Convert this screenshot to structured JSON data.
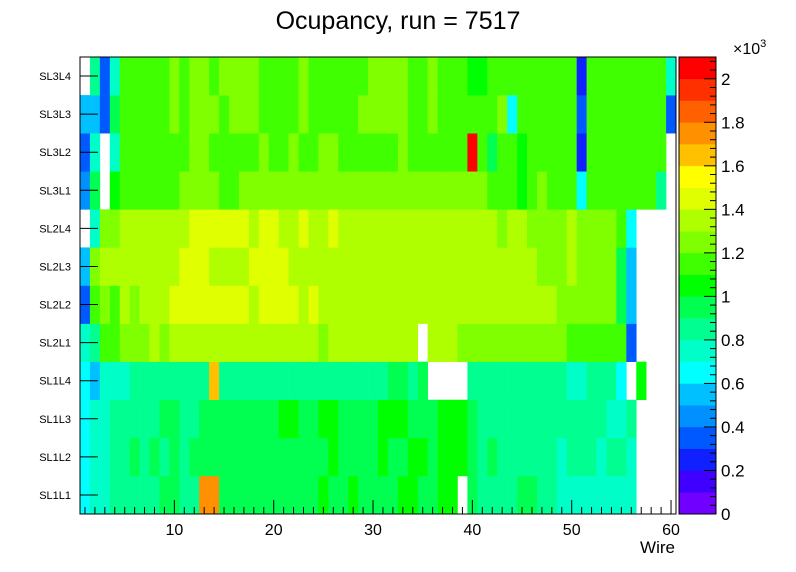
{
  "chart_data": {
    "type": "heatmap",
    "title": "Ocupancy, run = 7517",
    "xlabel": "Wire",
    "ylabel": "",
    "xlim": [
      0.5,
      60.5
    ],
    "x_ticks": [
      "10",
      "20",
      "30",
      "40",
      "50",
      "60"
    ],
    "x_tick_values": [
      10,
      20,
      30,
      40,
      50,
      60
    ],
    "y_categories": [
      "SL1L1",
      "SL1L2",
      "SL1L3",
      "SL1L4",
      "SL2L1",
      "SL2L2",
      "SL2L3",
      "SL2L4",
      "SL3L1",
      "SL3L2",
      "SL3L3",
      "SL3L4"
    ],
    "zlim": [
      0,
      2100
    ],
    "z_exponent_label": "×10",
    "z_exponent_power": "3",
    "z_ticks": [
      "0",
      "0.2",
      "0.4",
      "0.6",
      "0.8",
      "1",
      "1.2",
      "1.4",
      "1.6",
      "1.8",
      "2"
    ],
    "z_tick_values": [
      0,
      200,
      400,
      600,
      800,
      1000,
      1200,
      1400,
      1600,
      1800,
      2000
    ],
    "palette": [
      "#7000ff",
      "#4000ff",
      "#1020ff",
      "#0058ff",
      "#0090ff",
      "#00c0ff",
      "#00ffff",
      "#00ffc8",
      "#00ff90",
      "#00ff50",
      "#00ff00",
      "#40ff00",
      "#80ff00",
      "#b0ff00",
      "#e0ff00",
      "#ffff00",
      "#ffc000",
      "#ff9000",
      "#ff6000",
      "#ff3000",
      "#ff0000"
    ],
    "rows": [
      [
        600,
        750,
        750,
        850,
        850,
        850,
        850,
        850,
        900,
        900,
        850,
        850,
        1700,
        1700,
        900,
        900,
        900,
        900,
        950,
        950,
        950,
        950,
        950,
        950,
        1000,
        950,
        950,
        1000,
        950,
        950,
        950,
        950,
        1000,
        1000,
        950,
        950,
        1000,
        1000,
        0,
        900,
        800,
        800,
        850,
        850,
        900,
        900,
        800,
        800,
        750,
        750,
        750,
        750,
        750,
        750,
        750,
        750,
        0,
        0,
        0,
        0
      ],
      [
        600,
        700,
        700,
        850,
        800,
        900,
        800,
        900,
        850,
        900,
        850,
        900,
        900,
        900,
        950,
        900,
        950,
        900,
        950,
        950,
        950,
        950,
        950,
        950,
        950,
        1000,
        950,
        950,
        950,
        950,
        1000,
        950,
        950,
        1000,
        1000,
        950,
        1000,
        1000,
        1000,
        900,
        850,
        900,
        850,
        800,
        850,
        850,
        800,
        800,
        750,
        800,
        800,
        800,
        750,
        800,
        800,
        750,
        0,
        0,
        0,
        0
      ],
      [
        600,
        750,
        750,
        850,
        850,
        850,
        850,
        850,
        900,
        900,
        850,
        850,
        900,
        950,
        950,
        950,
        950,
        950,
        950,
        950,
        1000,
        1000,
        950,
        950,
        1000,
        1000,
        950,
        950,
        950,
        950,
        1000,
        1000,
        1000,
        950,
        950,
        950,
        1000,
        1000,
        1000,
        950,
        850,
        850,
        850,
        850,
        850,
        850,
        800,
        800,
        800,
        800,
        850,
        850,
        800,
        750,
        750,
        800,
        0,
        0,
        0,
        0
      ],
      [
        600,
        500,
        700,
        750,
        750,
        800,
        800,
        850,
        850,
        850,
        850,
        850,
        850,
        1600,
        850,
        850,
        850,
        850,
        800,
        850,
        850,
        850,
        850,
        800,
        850,
        850,
        850,
        850,
        850,
        850,
        850,
        900,
        900,
        850,
        900,
        0,
        0,
        0,
        0,
        850,
        850,
        850,
        850,
        850,
        850,
        850,
        850,
        850,
        850,
        750,
        750,
        850,
        850,
        850,
        650,
        0,
        1000,
        0,
        0,
        0
      ],
      [
        700,
        850,
        1150,
        1150,
        1200,
        1250,
        1250,
        1300,
        1250,
        1300,
        1300,
        1300,
        1300,
        1300,
        1350,
        1350,
        1350,
        1350,
        1300,
        1300,
        1350,
        1350,
        1300,
        1300,
        1250,
        1300,
        1350,
        1300,
        1300,
        1300,
        1300,
        1300,
        1300,
        1350,
        0,
        1300,
        1300,
        1300,
        1250,
        1200,
        1200,
        1200,
        1200,
        1250,
        1200,
        1200,
        1200,
        1200,
        1200,
        1150,
        1150,
        1150,
        1150,
        1150,
        1100,
        300,
        0,
        0,
        0,
        0
      ],
      [
        300,
        1150,
        1200,
        1150,
        1300,
        1200,
        1300,
        1350,
        1350,
        1400,
        1400,
        1400,
        1400,
        1400,
        1400,
        1400,
        1400,
        1350,
        1400,
        1400,
        1400,
        1400,
        1350,
        1400,
        1350,
        1350,
        1350,
        1350,
        1350,
        1350,
        1350,
        1350,
        1350,
        1350,
        1350,
        1350,
        1350,
        1350,
        1350,
        1350,
        1350,
        1300,
        1300,
        1300,
        1300,
        1350,
        1300,
        1300,
        1250,
        1250,
        1250,
        1250,
        1250,
        1250,
        950,
        500,
        0,
        0,
        0,
        0
      ],
      [
        500,
        1250,
        1300,
        1350,
        1300,
        1350,
        1300,
        1350,
        1350,
        1350,
        1400,
        1400,
        1400,
        1350,
        1350,
        1350,
        1350,
        1400,
        1450,
        1400,
        1400,
        1350,
        1350,
        1350,
        1350,
        1350,
        1300,
        1300,
        1350,
        1350,
        1350,
        1350,
        1300,
        1350,
        1300,
        1350,
        1300,
        1300,
        1350,
        1350,
        1300,
        1300,
        1300,
        1300,
        1300,
        1300,
        1250,
        1250,
        1250,
        1300,
        1250,
        1250,
        1250,
        1250,
        900,
        550,
        0,
        0,
        0,
        0
      ],
      [
        0,
        750,
        1250,
        1250,
        1300,
        1300,
        1300,
        1350,
        1350,
        1350,
        1350,
        1400,
        1400,
        1450,
        1400,
        1400,
        1400,
        1350,
        1400,
        1400,
        1350,
        1350,
        1400,
        1350,
        1350,
        1400,
        1350,
        1350,
        1300,
        1300,
        1350,
        1350,
        1350,
        1350,
        1300,
        1350,
        1300,
        1300,
        1300,
        1350,
        1300,
        1300,
        1250,
        1300,
        1300,
        1250,
        1250,
        1250,
        1250,
        1300,
        1250,
        1250,
        1250,
        1250,
        1100,
        600,
        0,
        0,
        0,
        0
      ],
      [
        400,
        900,
        0,
        1050,
        1100,
        1100,
        1100,
        1150,
        1150,
        1150,
        1200,
        1200,
        1200,
        1200,
        1150,
        1150,
        1200,
        1200,
        1250,
        1250,
        1200,
        1200,
        1200,
        1200,
        1200,
        1200,
        1200,
        1200,
        1200,
        1200,
        1200,
        1200,
        1200,
        1200,
        1200,
        1200,
        1200,
        1200,
        1200,
        1200,
        1200,
        1150,
        1150,
        1150,
        1050,
        1150,
        1200,
        1150,
        1150,
        1150,
        600,
        1150,
        1150,
        1150,
        1150,
        1100,
        1100,
        1100,
        800,
        0
      ],
      [
        350,
        700,
        0,
        700,
        1100,
        1100,
        1150,
        1150,
        1150,
        1150,
        1150,
        1200,
        1200,
        1150,
        1150,
        1150,
        1150,
        1150,
        1200,
        1150,
        1150,
        1200,
        1150,
        1150,
        1200,
        1200,
        1150,
        1150,
        1150,
        1150,
        1150,
        1150,
        1200,
        1150,
        1150,
        1150,
        1100,
        1100,
        1100,
        2050,
        1100,
        900,
        1100,
        1100,
        1050,
        1100,
        1100,
        1100,
        1100,
        1100,
        250,
        1100,
        1100,
        1100,
        1100,
        1100,
        1100,
        1100,
        1100,
        0
      ],
      [
        500,
        500,
        300,
        900,
        1100,
        1100,
        1150,
        1150,
        1150,
        1200,
        1150,
        1200,
        1200,
        1200,
        1150,
        1200,
        1200,
        1200,
        1150,
        1100,
        1150,
        1150,
        1200,
        1150,
        1100,
        1150,
        1150,
        1150,
        1200,
        1200,
        1200,
        1200,
        1200,
        1150,
        1150,
        1200,
        1100,
        1100,
        1100,
        1100,
        1100,
        1100,
        1200,
        600,
        1100,
        1150,
        1150,
        1150,
        1150,
        1150,
        300,
        1100,
        1100,
        1100,
        1100,
        1100,
        1100,
        1100,
        1100,
        300
      ],
      [
        0,
        850,
        300,
        700,
        1100,
        1100,
        1150,
        1150,
        1150,
        1200,
        1150,
        1200,
        1200,
        1150,
        1200,
        1200,
        1200,
        1200,
        1150,
        1100,
        1150,
        1150,
        1200,
        1150,
        1100,
        1150,
        1150,
        1150,
        1150,
        1200,
        1200,
        1200,
        1200,
        1150,
        1150,
        1200,
        1100,
        1100,
        1100,
        1050,
        1050,
        1150,
        1100,
        1100,
        1150,
        1100,
        1100,
        1150,
        1150,
        1150,
        250,
        1100,
        1100,
        1100,
        1100,
        1100,
        1100,
        1100,
        1100,
        700
      ]
    ]
  }
}
